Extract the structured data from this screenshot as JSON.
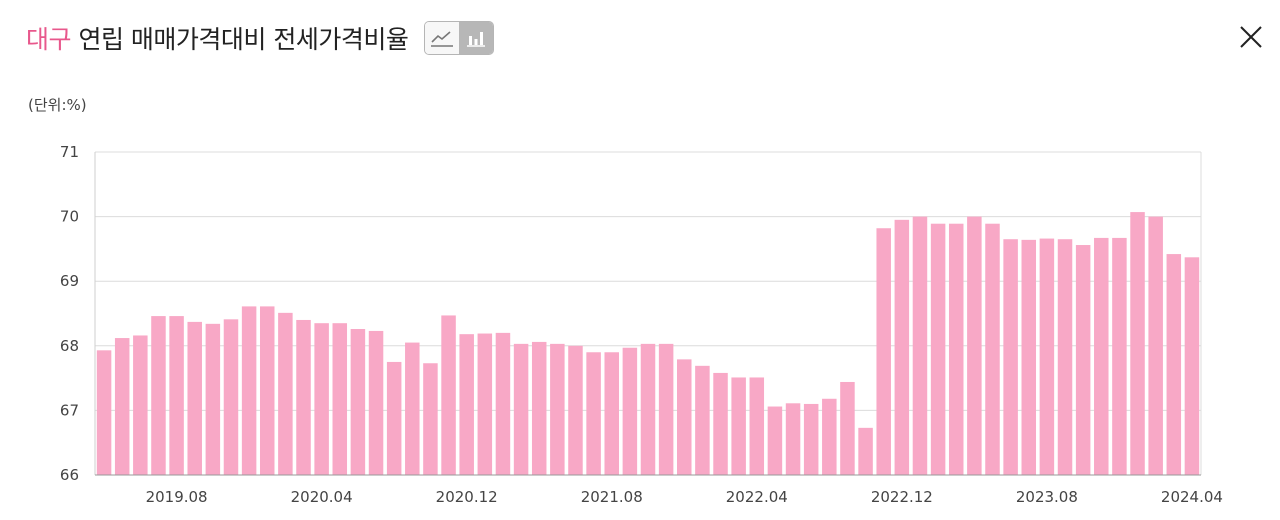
{
  "header": {
    "region": "대구",
    "title": " 연립 매매가격대비 전세가격비율"
  },
  "toolbar": {
    "line_icon": "line-chart-icon",
    "bar_icon": "bar-chart-icon",
    "close_icon": "close-icon"
  },
  "unit_label": "(단위:%)",
  "colors": {
    "accent": "#e8588c",
    "bar": "#f8a8c6"
  },
  "chart_data": {
    "type": "bar",
    "ylim": [
      66,
      71
    ],
    "yticks": [
      66,
      67,
      68,
      69,
      70,
      71
    ],
    "grid": true,
    "x_tick_labels": [
      "2019.08",
      "2020.04",
      "2020.12",
      "2021.08",
      "2022.04",
      "2022.12",
      "2023.08",
      "2024.04"
    ],
    "categories": [
      "2019.04",
      "2019.05",
      "2019.06",
      "2019.07",
      "2019.08",
      "2019.09",
      "2019.10",
      "2019.11",
      "2019.12",
      "2020.01",
      "2020.02",
      "2020.03",
      "2020.04",
      "2020.05",
      "2020.06",
      "2020.07",
      "2020.08",
      "2020.09",
      "2020.10",
      "2020.11",
      "2020.12",
      "2021.01",
      "2021.02",
      "2021.03",
      "2021.04",
      "2021.05",
      "2021.06",
      "2021.07",
      "2021.08",
      "2021.09",
      "2021.10",
      "2021.11",
      "2021.12",
      "2022.01",
      "2022.02",
      "2022.03",
      "2022.04",
      "2022.05",
      "2022.06",
      "2022.07",
      "2022.08",
      "2022.09",
      "2022.10",
      "2022.11",
      "2022.12",
      "2023.01",
      "2023.02",
      "2023.03",
      "2023.04",
      "2023.05",
      "2023.06",
      "2023.07",
      "2023.08",
      "2023.09",
      "2023.10",
      "2023.11",
      "2023.12",
      "2024.01",
      "2024.02",
      "2024.03",
      "2024.04"
    ],
    "values": [
      67.93,
      68.12,
      68.16,
      68.46,
      68.46,
      68.37,
      68.34,
      68.41,
      68.61,
      68.61,
      68.51,
      68.4,
      68.35,
      68.35,
      68.26,
      68.23,
      67.75,
      68.05,
      67.73,
      68.47,
      68.18,
      68.19,
      68.2,
      68.03,
      68.06,
      68.03,
      68.0,
      67.9,
      67.9,
      67.97,
      68.03,
      68.03,
      67.79,
      67.69,
      67.58,
      67.51,
      67.51,
      67.06,
      67.11,
      67.1,
      67.18,
      67.44,
      66.73,
      69.82,
      69.95,
      70.0,
      69.89,
      69.89,
      70.0,
      69.89,
      69.65,
      69.64,
      69.66,
      69.65,
      69.56,
      69.67,
      69.67,
      70.07,
      70.0,
      69.42,
      69.37
    ]
  }
}
